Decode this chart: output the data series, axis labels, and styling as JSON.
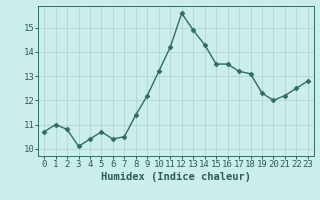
{
  "x": [
    0,
    1,
    2,
    3,
    4,
    5,
    6,
    7,
    8,
    9,
    10,
    11,
    12,
    13,
    14,
    15,
    16,
    17,
    18,
    19,
    20,
    21,
    22,
    23
  ],
  "y": [
    10.7,
    11.0,
    10.8,
    10.1,
    10.4,
    10.7,
    10.4,
    10.5,
    11.4,
    12.2,
    13.2,
    14.2,
    15.6,
    14.9,
    14.3,
    13.5,
    13.5,
    13.2,
    13.1,
    12.3,
    12.0,
    12.2,
    12.5,
    12.8
  ],
  "xlabel": "Humidex (Indice chaleur)",
  "line_color": "#2d6e63",
  "marker": "D",
  "marker_size": 2.5,
  "background_color": "#cbeeec",
  "grid_color": "#b8d8d5",
  "ylim": [
    9.7,
    15.9
  ],
  "xlim": [
    -0.5,
    23.5
  ],
  "yticks": [
    10,
    11,
    12,
    13,
    14,
    15
  ],
  "xticks": [
    0,
    1,
    2,
    3,
    4,
    5,
    6,
    7,
    8,
    9,
    10,
    11,
    12,
    13,
    14,
    15,
    16,
    17,
    18,
    19,
    20,
    21,
    22,
    23
  ],
  "tick_label_fontsize": 6.5,
  "xlabel_fontsize": 7.5,
  "linewidth": 1.0,
  "text_color": "#2d5c55"
}
